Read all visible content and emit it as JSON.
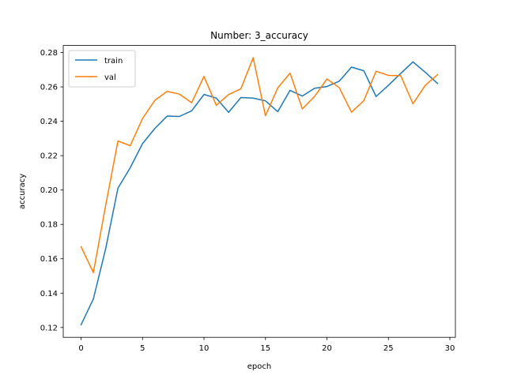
{
  "chart_data": {
    "type": "line",
    "title": "Number: 3_accuracy",
    "xlabel": "epoch",
    "ylabel": "accuracy",
    "xlim": [
      -1.45,
      30.45
    ],
    "ylim": [
      0.1143,
      0.2841
    ],
    "xticks": [
      0,
      5,
      10,
      15,
      20,
      25,
      30
    ],
    "yticks": [
      0.12,
      0.14,
      0.16,
      0.18,
      0.2,
      0.22,
      0.24,
      0.26,
      0.28
    ],
    "ytick_labels": [
      "0.12",
      "0.14",
      "0.16",
      "0.18",
      "0.20",
      "0.22",
      "0.24",
      "0.26",
      "0.28"
    ],
    "grid": false,
    "legend_position": "upper-left",
    "x": [
      0,
      1,
      2,
      3,
      4,
      5,
      6,
      7,
      8,
      9,
      10,
      11,
      12,
      13,
      14,
      15,
      16,
      17,
      18,
      19,
      20,
      21,
      22,
      23,
      24,
      25,
      26,
      27,
      28,
      29
    ],
    "series": [
      {
        "name": "train",
        "color": "#1f77b4",
        "values": [
          0.1216,
          0.1366,
          0.1658,
          0.2011,
          0.213,
          0.227,
          0.2358,
          0.243,
          0.2428,
          0.2461,
          0.2556,
          0.2535,
          0.2452,
          0.2538,
          0.2535,
          0.2519,
          0.2456,
          0.258,
          0.2547,
          0.2592,
          0.2602,
          0.2633,
          0.2715,
          0.2694,
          0.2544,
          0.2609,
          0.2678,
          0.2746,
          0.2685,
          0.262
        ]
      },
      {
        "name": "val",
        "color": "#ff7f0e",
        "values": [
          0.167,
          0.152,
          0.191,
          0.2285,
          0.2258,
          0.2416,
          0.2522,
          0.2574,
          0.2558,
          0.2508,
          0.2661,
          0.2493,
          0.2555,
          0.2589,
          0.277,
          0.2432,
          0.2594,
          0.268,
          0.2472,
          0.2545,
          0.2646,
          0.2596,
          0.2453,
          0.252,
          0.2691,
          0.2667,
          0.2666,
          0.2502,
          0.2609,
          0.2671
        ]
      }
    ]
  }
}
